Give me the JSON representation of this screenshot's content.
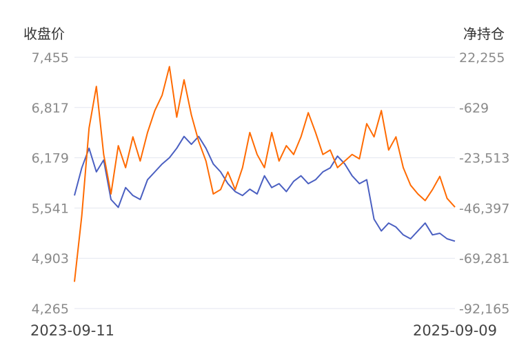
{
  "chart_data": {
    "type": "line",
    "y_left_title": "收盘价",
    "y_right_title": "净持仓",
    "x_start_label": "2023-09-11",
    "x_end_label": "2025-09-09",
    "y_left_ticks": [
      "7,455",
      "6,817",
      "6,179",
      "5,541",
      "4,903",
      "4,265"
    ],
    "y_right_ticks": [
      "22,255",
      "-629",
      "-23,513",
      "-46,397",
      "-69,281",
      "-92,165"
    ],
    "y_left_range": [
      4265,
      7455
    ],
    "y_right_range": [
      -92165,
      22255
    ],
    "grid": true,
    "legend": "none",
    "x_range": [
      "2023-09-11",
      "2025-09-09"
    ],
    "series": [
      {
        "axis": "left",
        "color": "#4a5fc1",
        "x": [
          "2023-09-11",
          "2023-09-25",
          "2023-10-09",
          "2023-10-23",
          "2023-11-06",
          "2023-11-20",
          "2023-12-04",
          "2023-12-18",
          "2024-01-01",
          "2024-01-15",
          "2024-01-29",
          "2024-02-12",
          "2024-02-26",
          "2024-03-11",
          "2024-03-25",
          "2024-04-08",
          "2024-04-22",
          "2024-05-06",
          "2024-05-20",
          "2024-06-03",
          "2024-06-17",
          "2024-07-01",
          "2024-07-15",
          "2024-07-29",
          "2024-08-12",
          "2024-08-26",
          "2024-09-09",
          "2024-09-23",
          "2024-10-07",
          "2024-10-21",
          "2024-11-04",
          "2024-11-18",
          "2024-12-02",
          "2024-12-16",
          "2024-12-30",
          "2025-01-13",
          "2025-01-27",
          "2025-02-10",
          "2025-02-24",
          "2025-03-10",
          "2025-03-24",
          "2025-04-07",
          "2025-04-21",
          "2025-05-05",
          "2025-05-19",
          "2025-06-02",
          "2025-06-16",
          "2025-06-30",
          "2025-07-14",
          "2025-07-28",
          "2025-08-11",
          "2025-08-25",
          "2025-09-09"
        ],
        "y": [
          5700,
          6050,
          6300,
          6000,
          6150,
          5650,
          5550,
          5800,
          5700,
          5650,
          5900,
          6000,
          6100,
          6180,
          6300,
          6450,
          6350,
          6450,
          6300,
          6100,
          6000,
          5850,
          5750,
          5700,
          5780,
          5720,
          5950,
          5800,
          5850,
          5750,
          5880,
          5950,
          5850,
          5900,
          6000,
          6050,
          6200,
          6100,
          5950,
          5850,
          5900,
          5400,
          5250,
          5350,
          5300,
          5200,
          5150,
          5250,
          5350,
          5200,
          5220,
          5150,
          5120
        ]
      },
      {
        "axis": "right",
        "color": "#ff6a00",
        "x": [
          "2023-09-11",
          "2023-09-25",
          "2023-10-09",
          "2023-10-23",
          "2023-11-06",
          "2023-11-20",
          "2023-12-04",
          "2023-12-18",
          "2024-01-01",
          "2024-01-15",
          "2024-01-29",
          "2024-02-12",
          "2024-02-26",
          "2024-03-11",
          "2024-03-25",
          "2024-04-08",
          "2024-04-22",
          "2024-05-06",
          "2024-05-20",
          "2024-06-03",
          "2024-06-17",
          "2024-07-01",
          "2024-07-15",
          "2024-07-29",
          "2024-08-12",
          "2024-08-26",
          "2024-09-09",
          "2024-09-23",
          "2024-10-07",
          "2024-10-21",
          "2024-11-04",
          "2024-11-18",
          "2024-12-02",
          "2024-12-16",
          "2024-12-30",
          "2025-01-13",
          "2025-01-27",
          "2025-02-10",
          "2025-02-24",
          "2025-03-10",
          "2025-03-24",
          "2025-04-07",
          "2025-04-21",
          "2025-05-05",
          "2025-05-19",
          "2025-06-02",
          "2025-06-16",
          "2025-06-30",
          "2025-07-14",
          "2025-07-28",
          "2025-08-11",
          "2025-08-25",
          "2025-09-09"
        ],
        "y": [
          -80000,
          -50000,
          -10000,
          9000,
          -22000,
          -40000,
          -18000,
          -28000,
          -14000,
          -25000,
          -12000,
          -2000,
          5000,
          18000,
          -5000,
          12000,
          -4000,
          -16000,
          -25000,
          -40000,
          -38000,
          -30000,
          -38000,
          -28000,
          -12000,
          -22000,
          -28000,
          -12000,
          -25000,
          -18000,
          -22000,
          -14000,
          -3000,
          -12000,
          -22000,
          -20000,
          -28000,
          -25000,
          -22000,
          -24000,
          -8000,
          -14000,
          -2000,
          -20000,
          -14000,
          -28000,
          -36000,
          -40000,
          -43000,
          -38000,
          -32000,
          -42000,
          -46000
        ]
      }
    ]
  }
}
